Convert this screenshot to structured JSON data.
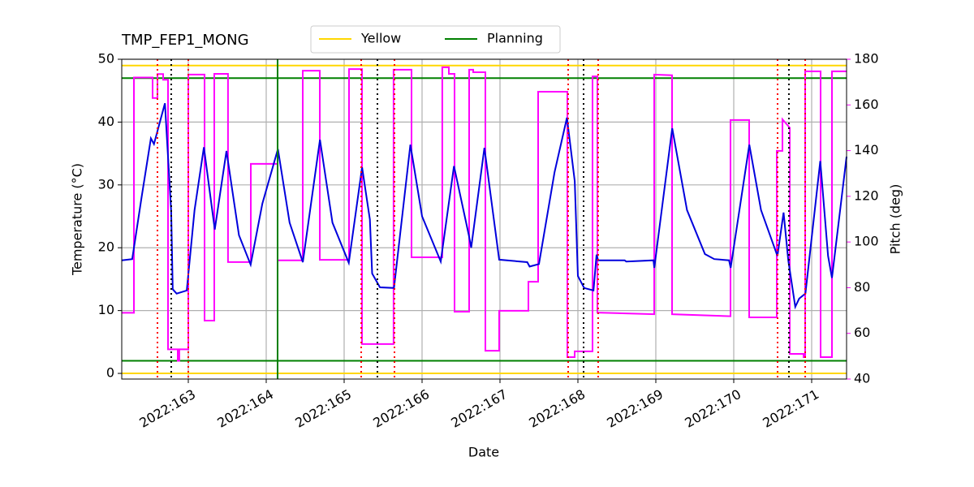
{
  "chart_data": {
    "type": "line",
    "title": "TMP_FEP1_MONG",
    "xlabel": "Date",
    "ylabel": "Temperature (°C)",
    "y2label": "Pitch (deg)",
    "y2_color": "#ff00ff",
    "xlim": [
      162.146,
      171.448
    ],
    "ylim": [
      -0.9,
      50
    ],
    "y2lim": [
      40,
      180
    ],
    "grid": true,
    "legend": "top",
    "xticks": [
      {
        "value": 163,
        "label": "2022:163"
      },
      {
        "value": 164,
        "label": "2022:164"
      },
      {
        "value": 165,
        "label": "2022:165"
      },
      {
        "value": 166,
        "label": "2022:166"
      },
      {
        "value": 167,
        "label": "2022:167"
      },
      {
        "value": 168,
        "label": "2022:168"
      },
      {
        "value": 169,
        "label": "2022:169"
      },
      {
        "value": 170,
        "label": "2022:170"
      },
      {
        "value": 171,
        "label": "2022:171"
      }
    ],
    "yticks": [
      0,
      10,
      20,
      30,
      40,
      50
    ],
    "y2ticks": [
      40,
      60,
      80,
      100,
      120,
      140,
      160,
      180
    ],
    "limits": [
      {
        "name": "Yellow",
        "color": "#ffd700",
        "values": [
          49,
          0
        ]
      },
      {
        "name": "Planning",
        "color": "#008000",
        "values": [
          47,
          2
        ]
      }
    ],
    "vlines": [
      {
        "color": "#ff0000",
        "style": "dotted",
        "x": [
          162.604,
          163.0,
          165.219,
          165.646,
          167.875,
          168.26,
          170.5625,
          170.917
        ]
      },
      {
        "color": "#000000",
        "style": "dotted",
        "x": [
          162.781,
          165.427,
          168.073,
          170.708
        ]
      },
      {
        "color": "#008000",
        "style": "solid",
        "x": [
          164.146
        ]
      }
    ],
    "series": [
      {
        "color": "#0000dd",
        "axis": "y",
        "x": [
          162.146,
          162.28,
          162.4,
          162.52,
          162.56,
          162.7,
          162.78,
          162.8,
          162.85,
          162.98,
          163.08,
          163.2,
          163.34,
          163.49,
          163.65,
          163.8,
          163.95,
          164.15,
          164.3,
          164.47,
          164.69,
          164.85,
          165.06,
          165.23,
          165.33,
          165.36,
          165.46,
          165.64,
          165.85,
          166.0,
          166.24,
          166.41,
          166.6,
          166.63,
          166.8,
          166.99,
          167.35,
          167.38,
          167.5,
          167.7,
          167.86,
          167.96,
          168.0,
          168.08,
          168.2,
          168.24,
          168.26,
          168.6,
          168.62,
          168.97,
          168.98,
          169.21,
          169.4,
          169.63,
          169.75,
          169.94,
          169.96,
          170.2,
          170.35,
          170.56,
          170.64,
          170.7,
          170.79,
          170.84,
          170.92,
          171.11,
          171.21,
          171.26,
          171.448
        ],
        "values": [
          18,
          18.2,
          28,
          37.4,
          36.5,
          43,
          25.8,
          13.4,
          12.7,
          13.2,
          26,
          36,
          22.9,
          35.4,
          22,
          17.3,
          27,
          35.7,
          24,
          17.7,
          37.2,
          24,
          17.6,
          32.8,
          24.5,
          15.9,
          13.7,
          13.6,
          36.4,
          25,
          17.8,
          33,
          22,
          20,
          35.9,
          18.1,
          17.7,
          17,
          17.4,
          32,
          40.7,
          30.6,
          15.5,
          13.6,
          13.2,
          18.9,
          18,
          18,
          17.8,
          18,
          16.8,
          39,
          26,
          19,
          18.2,
          18,
          16.8,
          36.4,
          26,
          18.7,
          25.6,
          18,
          10.6,
          11.9,
          12.7,
          33.8,
          18.7,
          15.2,
          34.5
        ]
      },
      {
        "color": "#ff00ff",
        "axis": "y2",
        "x": [
          162.146,
          162.302,
          162.302,
          162.542,
          162.542,
          162.604,
          162.604,
          162.677,
          162.677,
          162.74,
          162.74,
          162.865,
          162.865,
          162.885,
          162.885,
          163,
          163,
          163.208,
          163.208,
          163.333,
          163.333,
          163.51,
          163.51,
          163.802,
          163.802,
          164.146,
          164.146,
          164.469,
          164.469,
          164.688,
          164.688,
          165.063,
          165.063,
          165.229,
          165.229,
          165.635,
          165.635,
          165.865,
          165.865,
          166.26,
          166.26,
          166.344,
          166.344,
          166.417,
          166.417,
          166.604,
          166.604,
          166.656,
          166.656,
          166.813,
          166.813,
          166.99,
          166.99,
          167.365,
          167.365,
          167.49,
          167.49,
          167.865,
          167.865,
          167.958,
          167.958,
          168.188,
          168.188,
          168.25,
          168.25,
          168.979,
          168.979,
          169.208,
          169.208,
          169.958,
          169.958,
          170.198,
          170.198,
          170.552,
          170.552,
          170.625,
          170.625,
          170.719,
          170.719,
          170.896,
          170.896,
          170.917,
          170.917,
          171.115,
          171.115,
          171.26,
          171.26,
          171.448
        ],
        "values": [
          69,
          69,
          172,
          172,
          163,
          163,
          173.5,
          173.5,
          171,
          171,
          53,
          53,
          48,
          48,
          53,
          53,
          173.3,
          173.3,
          65.6,
          65.6,
          173.6,
          173.6,
          91.2,
          91.2,
          134.2,
          134.2,
          92,
          92,
          175,
          175,
          92.2,
          92.2,
          175.7,
          175.7,
          55.3,
          55.3,
          175.4,
          175.4,
          93.3,
          93.3,
          176.5,
          176.5,
          173.6,
          173.6,
          69.5,
          69.5,
          175.4,
          175.4,
          174.3,
          174.3,
          52.4,
          52.4,
          69.9,
          69.9,
          82.6,
          82.6,
          165.8,
          165.8,
          49.6,
          49.6,
          52.1,
          52.1,
          172.5,
          172.5,
          69.1,
          68.4,
          173.3,
          173,
          68.4,
          67.5,
          153.4,
          153.4,
          67,
          67,
          139.9,
          139.9,
          153.7,
          150,
          51,
          51,
          49.6,
          49.6,
          174.7,
          174.7,
          49.6,
          49.6,
          174.7,
          174.7
        ]
      }
    ]
  }
}
